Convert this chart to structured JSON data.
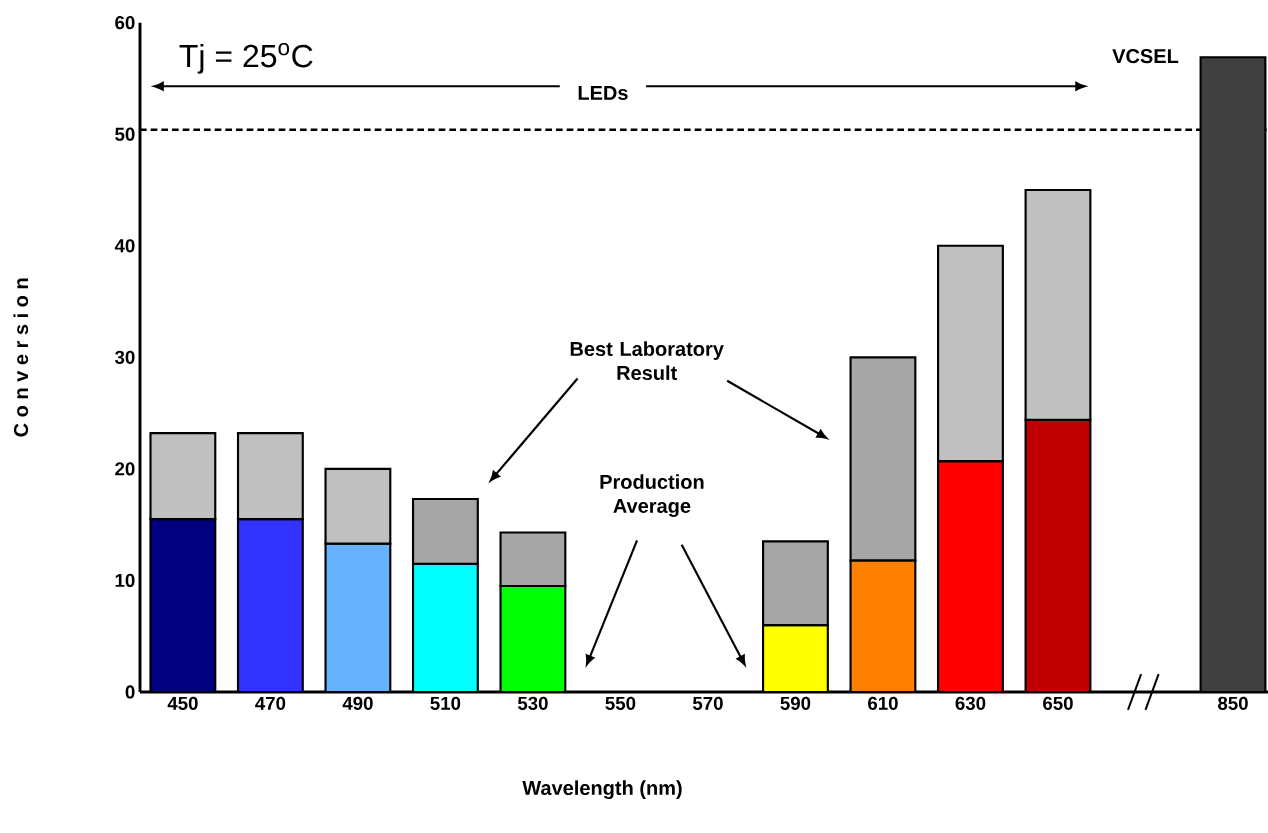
{
  "chart_data": {
    "type": "bar",
    "stacked": true,
    "categories": [
      "450",
      "470",
      "490",
      "510",
      "530",
      "550",
      "570",
      "590",
      "610",
      "630",
      "650",
      null,
      "850"
    ],
    "series": [
      {
        "colors": [
          "#000080",
          "#3333ff",
          "#66b2ff",
          "#00ffff",
          "#00ff00",
          null,
          null,
          "#ffff00",
          "#ff8000",
          "#ff0000",
          "#c00000",
          null,
          "#404040"
        ],
        "values": [
          15.5,
          15.5,
          13.3,
          11.5,
          9.5,
          null,
          null,
          6,
          11.8,
          20.7,
          24.4,
          null,
          56.9
        ]
      },
      {
        "colors": [
          "#c0c0c0",
          "#c0c0c0",
          "#c0c0c0",
          "#a6a6a6",
          "#a6a6a6",
          null,
          null,
          "#a6a6a6",
          "#a6a6a6",
          "#c0c0c0",
          "#c0c0c0",
          null,
          null
        ],
        "values": [
          7.7,
          7.7,
          6.7,
          5.8,
          4.8,
          null,
          null,
          7.5,
          18.2,
          19.3,
          20.6,
          null,
          null
        ]
      }
    ],
    "ylim": [
      0,
      60
    ],
    "yticks": [
      0,
      10,
      20,
      30,
      40,
      50,
      60
    ],
    "xlabel": "Wavelength (nm)",
    "ylabel": "C o n v e r s i o n",
    "ref_lines": [
      {
        "axis": "y",
        "value": 50.4,
        "line_style": "dashed",
        "color": "#000000"
      }
    ],
    "annotations": [
      "Tj = 25$^{o}$C",
      "LEDs",
      "VCSEL",
      "Best Laboratory Result",
      "Production Average"
    ]
  }
}
